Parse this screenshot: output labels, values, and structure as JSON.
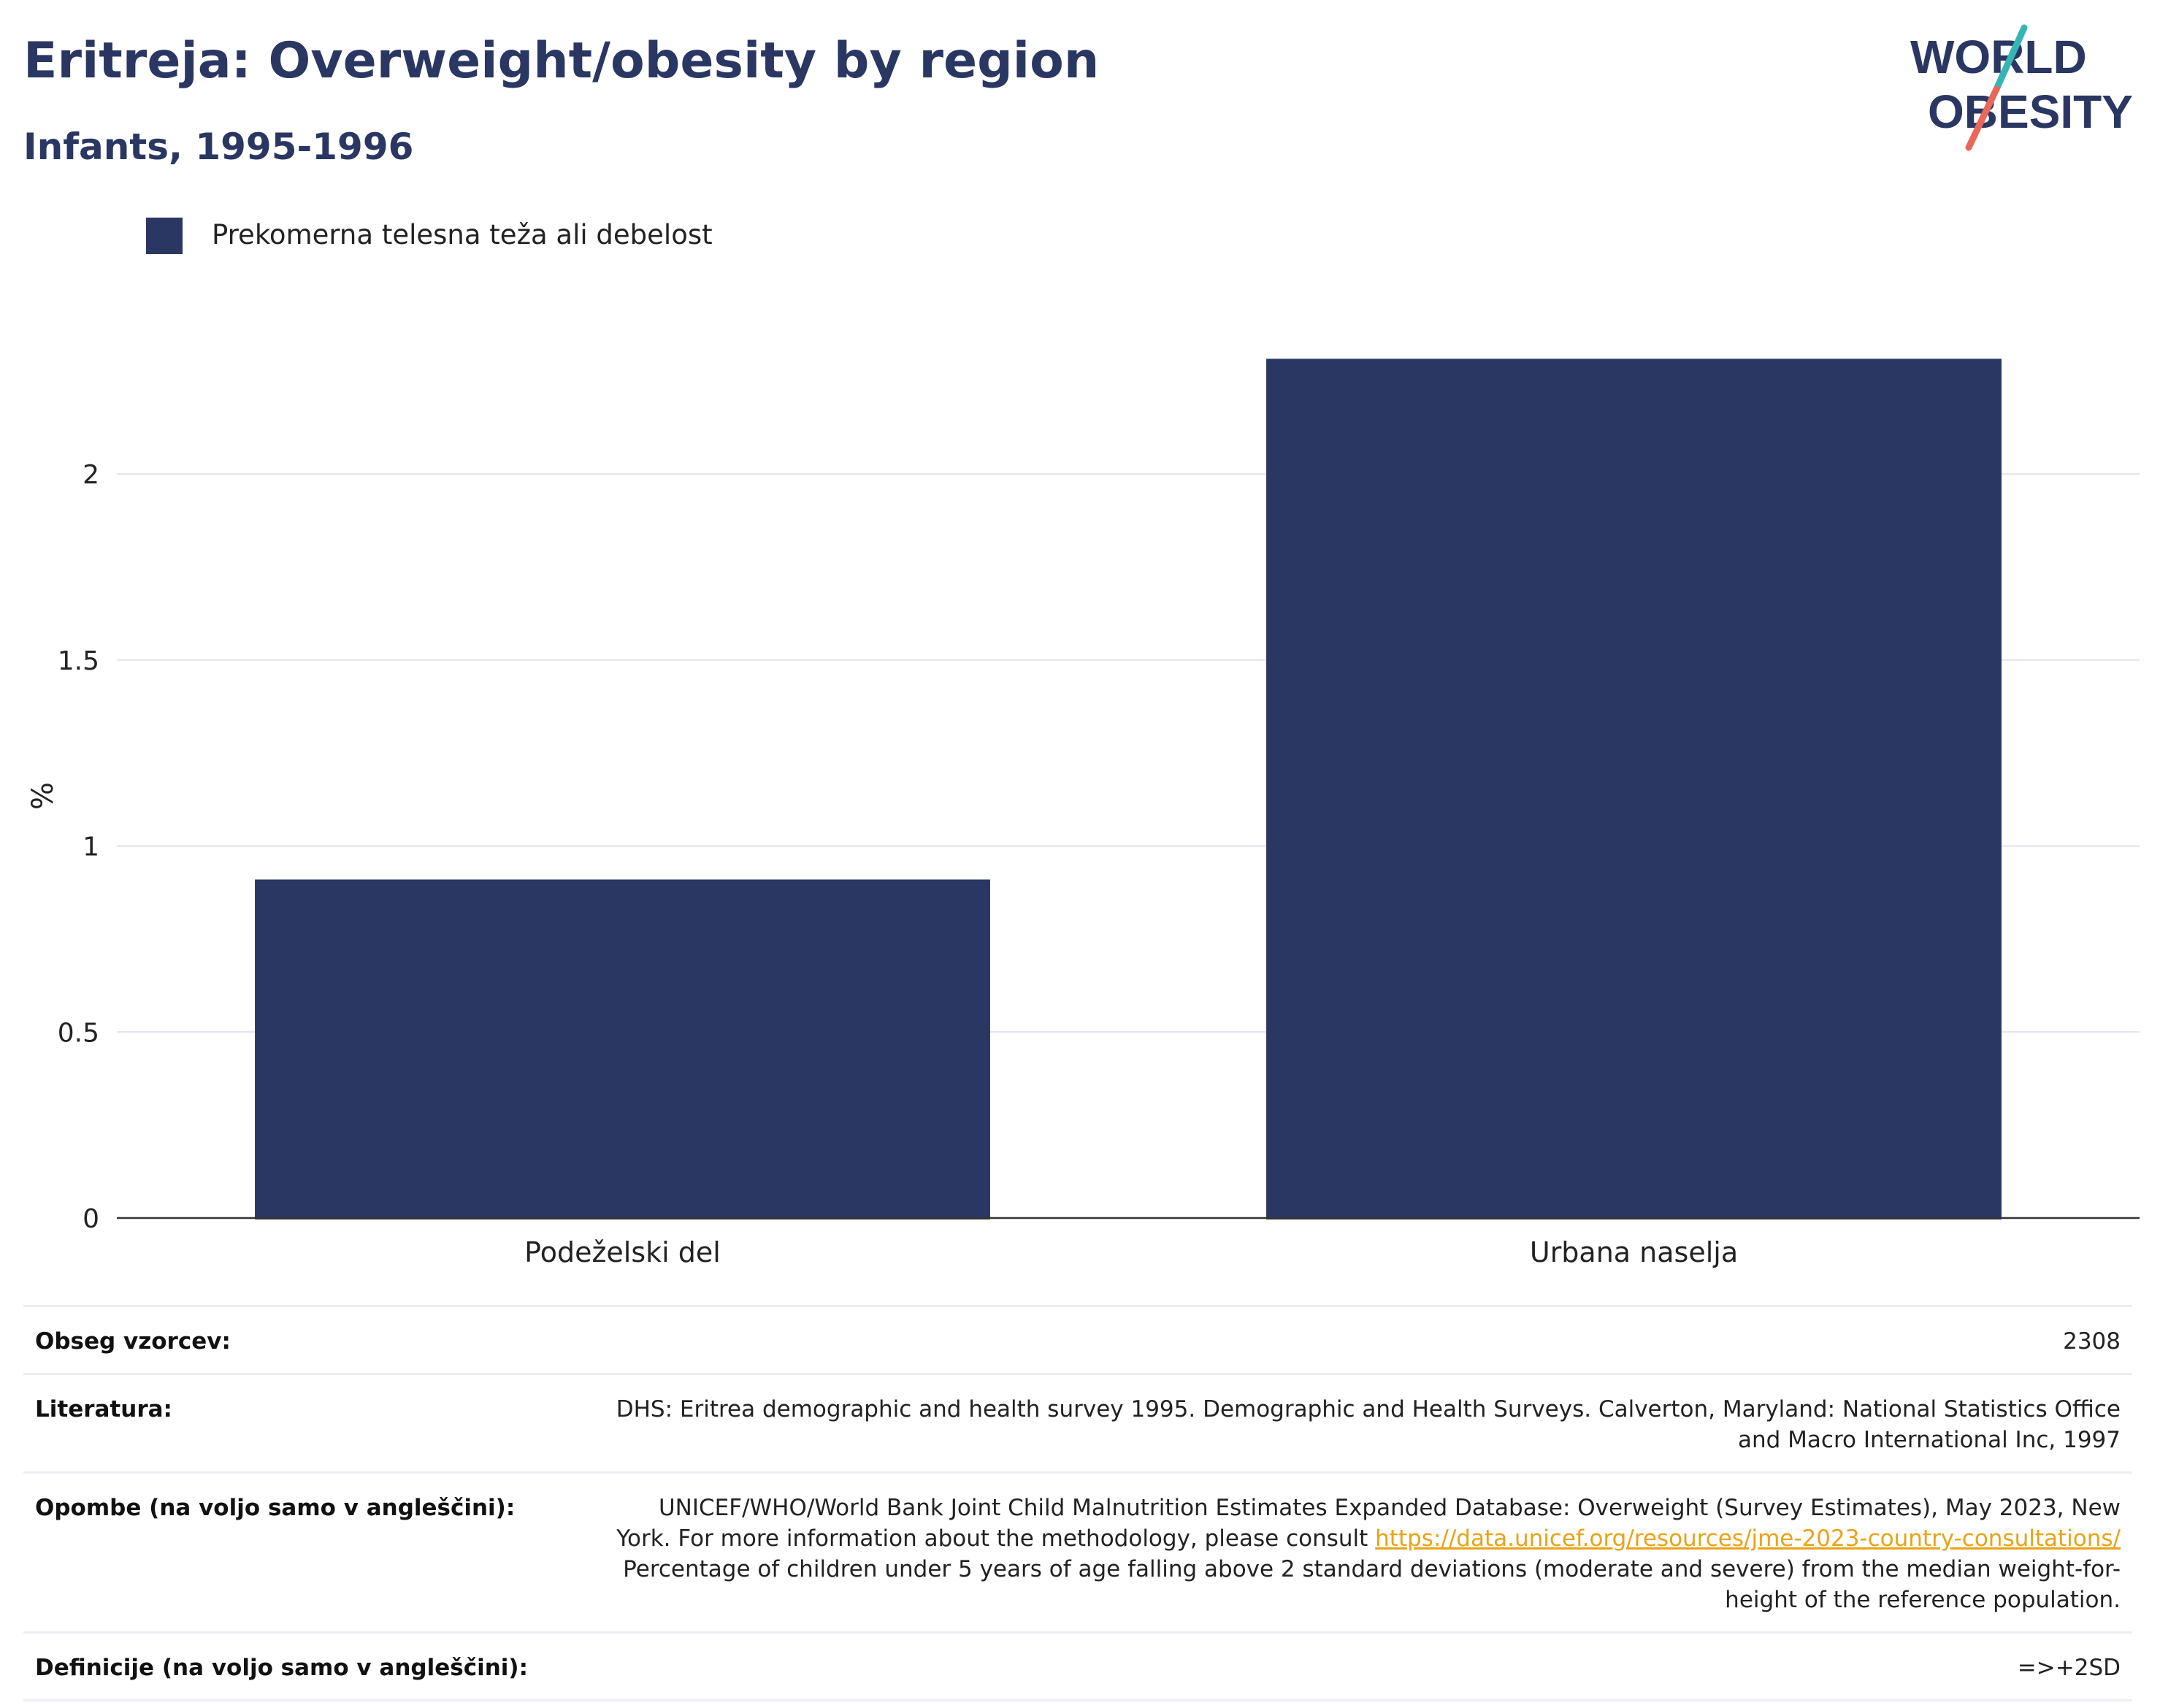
{
  "header": {
    "title": "Eritreja: Overweight/obesity by region",
    "subtitle": "Infants, 1995-1996"
  },
  "logo": {
    "line1": "WORLD",
    "line2": "OBESITY",
    "colors": {
      "text": "#2a3763",
      "slash_teal": "#35b6b4",
      "slash_coral": "#e8685a"
    }
  },
  "legend": {
    "label": "Prekomerna telesna teža ali debelost",
    "color": "#2a3763"
  },
  "chart_data": {
    "type": "bar",
    "categories": [
      "Podeželski del",
      "Urbana naselja"
    ],
    "series": [
      {
        "name": "Prekomerna telesna teža ali debelost",
        "values": [
          0.91,
          2.31
        ],
        "color": "#2a3763"
      }
    ],
    "ylabel": "%",
    "xlabel": "",
    "ylim": [
      0,
      2.45
    ],
    "yticks": [
      0,
      0.5,
      1,
      1.5,
      2
    ],
    "ytick_labels": [
      "0",
      "0.5",
      "1",
      "1.5",
      "2"
    ],
    "grid": true,
    "legend_position": "top-left"
  },
  "meta": {
    "sample_key": "Obseg vzorcev:",
    "sample_value": "2308",
    "literature_key": "Literatura:",
    "literature_value": "DHS: Eritrea demographic and health survey 1995. Demographic and Health Surveys. Calverton, Maryland: National Statistics Office and Macro International Inc, 1997",
    "notes_key": "Opombe (na voljo samo v angleščini):",
    "notes_text_1": "UNICEF/WHO/World Bank Joint Child Malnutrition Estimates Expanded Database: Overweight (Survey Estimates), May 2023, New York. For more information about the methodology, please consult",
    "notes_link": "https://data.unicef.org/resources/jme-2023-country-consultations/",
    "notes_text_2": "Percentage of children under 5 years of age falling above 2 standard deviations (moderate and severe) from the median weight-for-height of the reference population.",
    "definitions_key": "Definicije (na voljo samo v angleščini):",
    "definitions_value": "=>+2SD"
  }
}
